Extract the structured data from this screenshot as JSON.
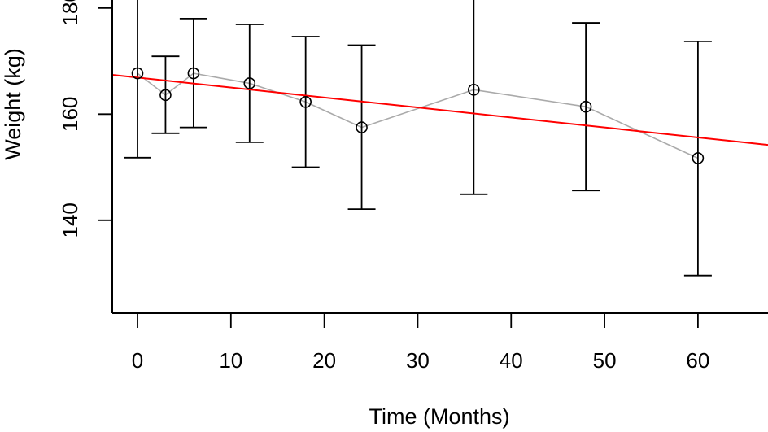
{
  "chart_data": {
    "type": "scatter",
    "xlabel": "Time (Months)",
    "ylabel": "Weight (kg)",
    "xlim": [
      -2.7,
      67.5
    ],
    "ylim": [
      122.5,
      181.5
    ],
    "x_ticks": [
      0,
      10,
      20,
      30,
      40,
      50,
      60
    ],
    "y_ticks": [
      140,
      160,
      180
    ],
    "grid": false,
    "series": [
      {
        "type": "line-with-errorbars",
        "color": "#aaaaaa",
        "marker": "open-circle",
        "x": [
          0,
          3,
          6,
          12,
          18,
          24,
          36,
          48,
          60
        ],
        "y": [
          167.7,
          163.6,
          167.7,
          165.8,
          162.3,
          157.5,
          164.6,
          161.4,
          151.7
        ],
        "y_lower": [
          151.8,
          156.4,
          157.5,
          154.7,
          150.0,
          142.1,
          144.9,
          145.6,
          129.6
        ],
        "y_upper": [
          184.0,
          170.9,
          178.0,
          176.9,
          174.6,
          173.0,
          185.0,
          177.2,
          173.7
        ]
      },
      {
        "type": "trend-line",
        "color": "#ff0000",
        "x": [
          -2.7,
          67.5
        ],
        "y": [
          167.4,
          154.2
        ]
      }
    ]
  }
}
